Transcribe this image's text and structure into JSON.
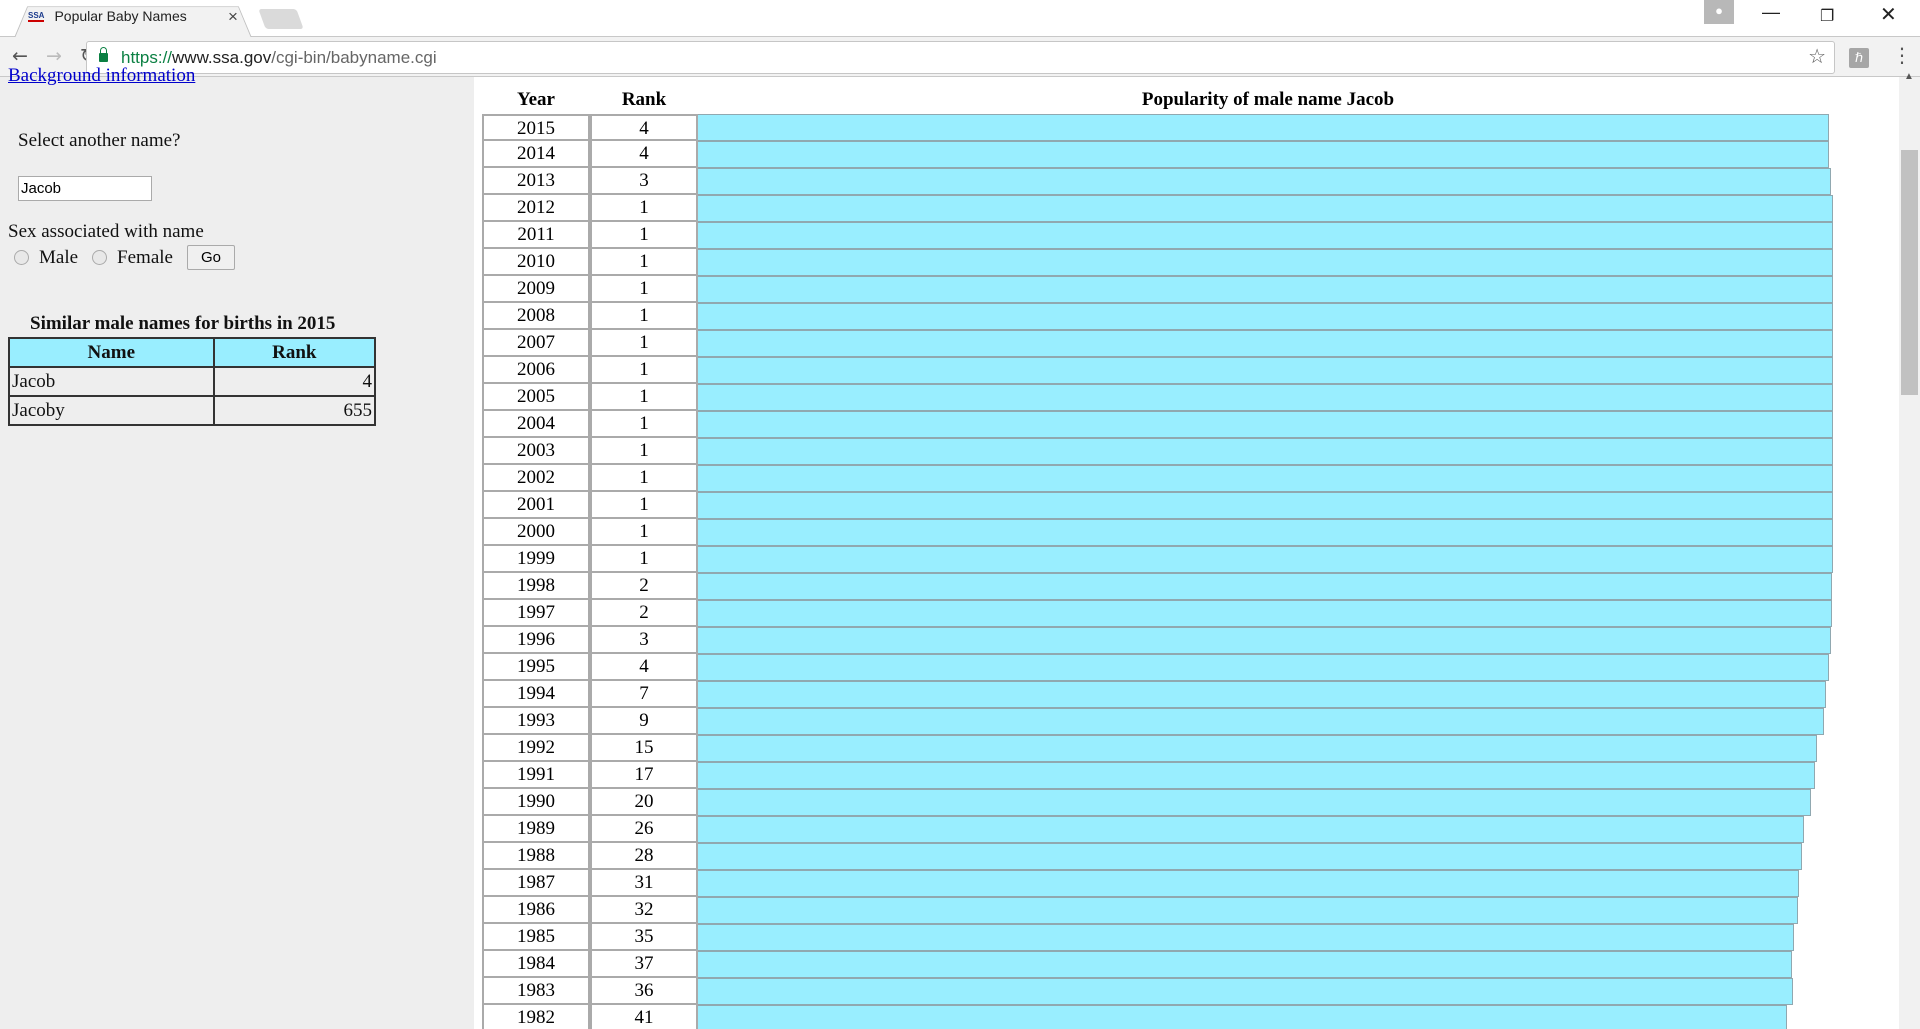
{
  "browser": {
    "tab_title": "Popular Baby Names",
    "favicon_text": "SSA",
    "url_scheme": "https://",
    "url_host": "www.ssa.gov",
    "url_path": "/cgi-bin/babyname.cgi"
  },
  "sidebar": {
    "background_link": "Background information",
    "select_label": "Select another name?",
    "name_value": "Jacob",
    "sex_label": "Sex associated with name",
    "male_label": "Male",
    "female_label": "Female",
    "go_label": "Go",
    "similar_title": "Similar male names for births in 2015",
    "similar_headers": [
      "Name",
      "Rank"
    ],
    "similar_rows": [
      {
        "name": "Jacob",
        "rank": "4"
      },
      {
        "name": "Jacoby",
        "rank": "655"
      }
    ]
  },
  "colors": {
    "bar": "#99eeff",
    "sidebar_bg": "#eeeeee"
  },
  "chart_data": {
    "type": "bar",
    "title": "Popularity of male name Jacob",
    "headers": [
      "Year",
      "Rank"
    ],
    "categories": [
      "2015",
      "2014",
      "2013",
      "2012",
      "2011",
      "2010",
      "2009",
      "2008",
      "2007",
      "2006",
      "2005",
      "2004",
      "2003",
      "2002",
      "2001",
      "2000",
      "1999",
      "1998",
      "1997",
      "1996",
      "1995",
      "1994",
      "1993",
      "1992",
      "1991",
      "1990",
      "1989",
      "1988",
      "1987",
      "1986",
      "1985",
      "1984",
      "1983",
      "1982"
    ],
    "values": [
      4,
      4,
      3,
      1,
      1,
      1,
      1,
      1,
      1,
      1,
      1,
      1,
      1,
      1,
      1,
      1,
      1,
      2,
      2,
      3,
      4,
      7,
      9,
      15,
      17,
      20,
      26,
      28,
      31,
      32,
      35,
      37,
      36,
      41
    ],
    "orientation": "horizontal"
  }
}
